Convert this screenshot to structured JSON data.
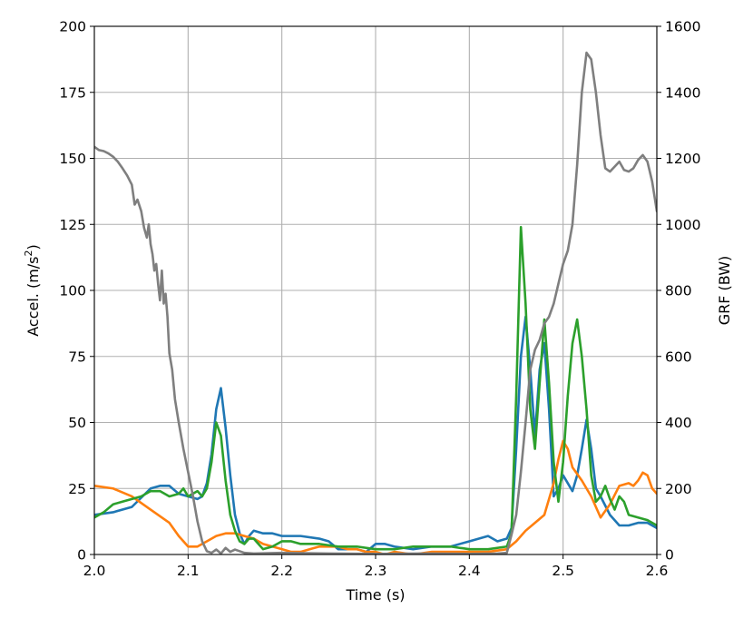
{
  "chart_data": {
    "type": "line",
    "title": "",
    "xlabel": "Time (s)",
    "ylabel_left_prefix": "Accel. (m/s",
    "ylabel_left_sup": "2",
    "ylabel_left_suffix": ")",
    "ylabel_right": "GRF (BW)",
    "xlim": [
      2.0,
      2.6
    ],
    "ylim_left": [
      0,
      200
    ],
    "ylim_right": [
      0,
      1600
    ],
    "grid": true,
    "x_ticks": [
      "2.0",
      "2.1",
      "2.2",
      "2.3",
      "2.4",
      "2.5",
      "2.6"
    ],
    "y_ticks_left": [
      "0",
      "25",
      "50",
      "75",
      "100",
      "125",
      "150",
      "175",
      "200"
    ],
    "y_ticks_right": [
      "0",
      "200",
      "400",
      "600",
      "800",
      "1000",
      "1200",
      "1400",
      "1600"
    ],
    "series": [
      {
        "color": "#1f77b4",
        "axis": "left",
        "points": [
          [
            2.0,
            15
          ],
          [
            2.02,
            16
          ],
          [
            2.04,
            18
          ],
          [
            2.06,
            25
          ],
          [
            2.07,
            26
          ],
          [
            2.08,
            26
          ],
          [
            2.09,
            23
          ],
          [
            2.1,
            22
          ],
          [
            2.11,
            21
          ],
          [
            2.115,
            22
          ],
          [
            2.12,
            27
          ],
          [
            2.125,
            38
          ],
          [
            2.13,
            55
          ],
          [
            2.135,
            63
          ],
          [
            2.14,
            48
          ],
          [
            2.145,
            30
          ],
          [
            2.15,
            15
          ],
          [
            2.155,
            8
          ],
          [
            2.16,
            4
          ],
          [
            2.165,
            7
          ],
          [
            2.17,
            9
          ],
          [
            2.18,
            8
          ],
          [
            2.19,
            8
          ],
          [
            2.2,
            7
          ],
          [
            2.22,
            7
          ],
          [
            2.24,
            6
          ],
          [
            2.25,
            5
          ],
          [
            2.26,
            2
          ],
          [
            2.28,
            2
          ],
          [
            2.29,
            1
          ],
          [
            2.3,
            4
          ],
          [
            2.31,
            4
          ],
          [
            2.32,
            3
          ],
          [
            2.34,
            2
          ],
          [
            2.36,
            3
          ],
          [
            2.38,
            3
          ],
          [
            2.4,
            5
          ],
          [
            2.42,
            7
          ],
          [
            2.43,
            5
          ],
          [
            2.44,
            6
          ],
          [
            2.445,
            10
          ],
          [
            2.45,
            40
          ],
          [
            2.455,
            75
          ],
          [
            2.46,
            90
          ],
          [
            2.465,
            70
          ],
          [
            2.47,
            45
          ],
          [
            2.475,
            70
          ],
          [
            2.48,
            80
          ],
          [
            2.485,
            55
          ],
          [
            2.49,
            22
          ],
          [
            2.495,
            25
          ],
          [
            2.5,
            30
          ],
          [
            2.505,
            27
          ],
          [
            2.51,
            24
          ],
          [
            2.515,
            30
          ],
          [
            2.52,
            40
          ],
          [
            2.525,
            51
          ],
          [
            2.53,
            40
          ],
          [
            2.535,
            25
          ],
          [
            2.54,
            22
          ],
          [
            2.55,
            15
          ],
          [
            2.56,
            11
          ],
          [
            2.57,
            11
          ],
          [
            2.58,
            12
          ],
          [
            2.59,
            12
          ],
          [
            2.6,
            10
          ]
        ]
      },
      {
        "color": "#ff7f0e",
        "axis": "left",
        "points": [
          [
            2.0,
            26
          ],
          [
            2.02,
            25
          ],
          [
            2.04,
            22
          ],
          [
            2.06,
            17
          ],
          [
            2.08,
            12
          ],
          [
            2.09,
            7
          ],
          [
            2.1,
            3
          ],
          [
            2.11,
            3
          ],
          [
            2.12,
            5
          ],
          [
            2.13,
            7
          ],
          [
            2.14,
            8
          ],
          [
            2.15,
            8
          ],
          [
            2.16,
            7
          ],
          [
            2.17,
            6
          ],
          [
            2.18,
            4
          ],
          [
            2.19,
            3
          ],
          [
            2.2,
            2
          ],
          [
            2.21,
            1
          ],
          [
            2.22,
            1
          ],
          [
            2.23,
            2
          ],
          [
            2.24,
            3
          ],
          [
            2.25,
            3
          ],
          [
            2.26,
            3
          ],
          [
            2.27,
            2
          ],
          [
            2.28,
            2
          ],
          [
            2.29,
            1
          ],
          [
            2.3,
            1
          ],
          [
            2.31,
            0
          ],
          [
            2.32,
            1
          ],
          [
            2.34,
            0
          ],
          [
            2.36,
            1
          ],
          [
            2.38,
            1
          ],
          [
            2.4,
            1
          ],
          [
            2.42,
            1
          ],
          [
            2.44,
            2
          ],
          [
            2.45,
            5
          ],
          [
            2.46,
            9
          ],
          [
            2.47,
            12
          ],
          [
            2.48,
            15
          ],
          [
            2.49,
            27
          ],
          [
            2.495,
            36
          ],
          [
            2.5,
            43
          ],
          [
            2.505,
            40
          ],
          [
            2.51,
            33
          ],
          [
            2.52,
            28
          ],
          [
            2.53,
            22
          ],
          [
            2.54,
            14
          ],
          [
            2.55,
            19
          ],
          [
            2.56,
            26
          ],
          [
            2.57,
            27
          ],
          [
            2.575,
            26
          ],
          [
            2.58,
            28
          ],
          [
            2.585,
            31
          ],
          [
            2.59,
            30
          ],
          [
            2.595,
            25
          ],
          [
            2.6,
            23
          ]
        ]
      },
      {
        "color": "#2ca02c",
        "axis": "left",
        "points": [
          [
            2.0,
            14
          ],
          [
            2.01,
            16
          ],
          [
            2.02,
            19
          ],
          [
            2.03,
            20
          ],
          [
            2.04,
            21
          ],
          [
            2.05,
            22
          ],
          [
            2.06,
            24
          ],
          [
            2.07,
            24
          ],
          [
            2.08,
            22
          ],
          [
            2.09,
            23
          ],
          [
            2.095,
            25
          ],
          [
            2.1,
            22
          ],
          [
            2.105,
            23
          ],
          [
            2.11,
            24
          ],
          [
            2.115,
            22
          ],
          [
            2.12,
            25
          ],
          [
            2.125,
            35
          ],
          [
            2.13,
            50
          ],
          [
            2.135,
            45
          ],
          [
            2.14,
            28
          ],
          [
            2.145,
            15
          ],
          [
            2.15,
            9
          ],
          [
            2.155,
            5
          ],
          [
            2.16,
            4
          ],
          [
            2.165,
            6
          ],
          [
            2.17,
            6
          ],
          [
            2.175,
            4
          ],
          [
            2.18,
            2
          ],
          [
            2.19,
            3
          ],
          [
            2.2,
            5
          ],
          [
            2.21,
            5
          ],
          [
            2.22,
            4
          ],
          [
            2.24,
            4
          ],
          [
            2.26,
            3
          ],
          [
            2.28,
            3
          ],
          [
            2.3,
            2
          ],
          [
            2.32,
            2
          ],
          [
            2.34,
            3
          ],
          [
            2.36,
            3
          ],
          [
            2.38,
            3
          ],
          [
            2.4,
            2
          ],
          [
            2.42,
            2
          ],
          [
            2.44,
            3
          ],
          [
            2.445,
            8
          ],
          [
            2.45,
            60
          ],
          [
            2.455,
            124
          ],
          [
            2.46,
            95
          ],
          [
            2.465,
            55
          ],
          [
            2.47,
            40
          ],
          [
            2.475,
            65
          ],
          [
            2.48,
            89
          ],
          [
            2.485,
            65
          ],
          [
            2.49,
            35
          ],
          [
            2.495,
            20
          ],
          [
            2.5,
            35
          ],
          [
            2.505,
            60
          ],
          [
            2.51,
            80
          ],
          [
            2.515,
            89
          ],
          [
            2.52,
            75
          ],
          [
            2.525,
            55
          ],
          [
            2.53,
            30
          ],
          [
            2.535,
            20
          ],
          [
            2.54,
            22
          ],
          [
            2.545,
            26
          ],
          [
            2.55,
            21
          ],
          [
            2.555,
            17
          ],
          [
            2.56,
            22
          ],
          [
            2.565,
            20
          ],
          [
            2.57,
            15
          ],
          [
            2.58,
            14
          ],
          [
            2.59,
            13
          ],
          [
            2.6,
            11
          ]
        ]
      },
      {
        "color": "#7f7f7f",
        "axis": "right",
        "points": [
          [
            2.0,
            1235
          ],
          [
            2.005,
            1225
          ],
          [
            2.01,
            1222
          ],
          [
            2.015,
            1215
          ],
          [
            2.02,
            1205
          ],
          [
            2.025,
            1190
          ],
          [
            2.03,
            1170
          ],
          [
            2.035,
            1148
          ],
          [
            2.04,
            1120
          ],
          [
            2.043,
            1060
          ],
          [
            2.046,
            1075
          ],
          [
            2.05,
            1040
          ],
          [
            2.053,
            990
          ],
          [
            2.056,
            960
          ],
          [
            2.058,
            1000
          ],
          [
            2.06,
            940
          ],
          [
            2.062,
            910
          ],
          [
            2.064,
            860
          ],
          [
            2.066,
            880
          ],
          [
            2.068,
            820
          ],
          [
            2.07,
            770
          ],
          [
            2.072,
            860
          ],
          [
            2.074,
            760
          ],
          [
            2.076,
            790
          ],
          [
            2.078,
            720
          ],
          [
            2.08,
            610
          ],
          [
            2.083,
            560
          ],
          [
            2.086,
            470
          ],
          [
            2.09,
            400
          ],
          [
            2.095,
            320
          ],
          [
            2.1,
            250
          ],
          [
            2.105,
            180
          ],
          [
            2.11,
            100
          ],
          [
            2.115,
            40
          ],
          [
            2.12,
            10
          ],
          [
            2.125,
            5
          ],
          [
            2.13,
            15
          ],
          [
            2.135,
            3
          ],
          [
            2.14,
            20
          ],
          [
            2.145,
            8
          ],
          [
            2.15,
            15
          ],
          [
            2.16,
            5
          ],
          [
            2.17,
            3
          ],
          [
            2.2,
            5
          ],
          [
            2.25,
            3
          ],
          [
            2.3,
            2
          ],
          [
            2.35,
            3
          ],
          [
            2.4,
            2
          ],
          [
            2.43,
            3
          ],
          [
            2.44,
            5
          ],
          [
            2.445,
            60
          ],
          [
            2.45,
            120
          ],
          [
            2.455,
            250
          ],
          [
            2.46,
            400
          ],
          [
            2.465,
            560
          ],
          [
            2.47,
            620
          ],
          [
            2.475,
            650
          ],
          [
            2.48,
            700
          ],
          [
            2.485,
            720
          ],
          [
            2.49,
            760
          ],
          [
            2.495,
            820
          ],
          [
            2.5,
            880
          ],
          [
            2.505,
            920
          ],
          [
            2.51,
            1000
          ],
          [
            2.515,
            1180
          ],
          [
            2.52,
            1400
          ],
          [
            2.525,
            1520
          ],
          [
            2.53,
            1500
          ],
          [
            2.535,
            1400
          ],
          [
            2.54,
            1270
          ],
          [
            2.545,
            1170
          ],
          [
            2.55,
            1160
          ],
          [
            2.555,
            1175
          ],
          [
            2.56,
            1190
          ],
          [
            2.565,
            1165
          ],
          [
            2.57,
            1160
          ],
          [
            2.575,
            1170
          ],
          [
            2.58,
            1195
          ],
          [
            2.585,
            1210
          ],
          [
            2.59,
            1190
          ],
          [
            2.595,
            1130
          ],
          [
            2.6,
            1040
          ]
        ]
      }
    ]
  }
}
